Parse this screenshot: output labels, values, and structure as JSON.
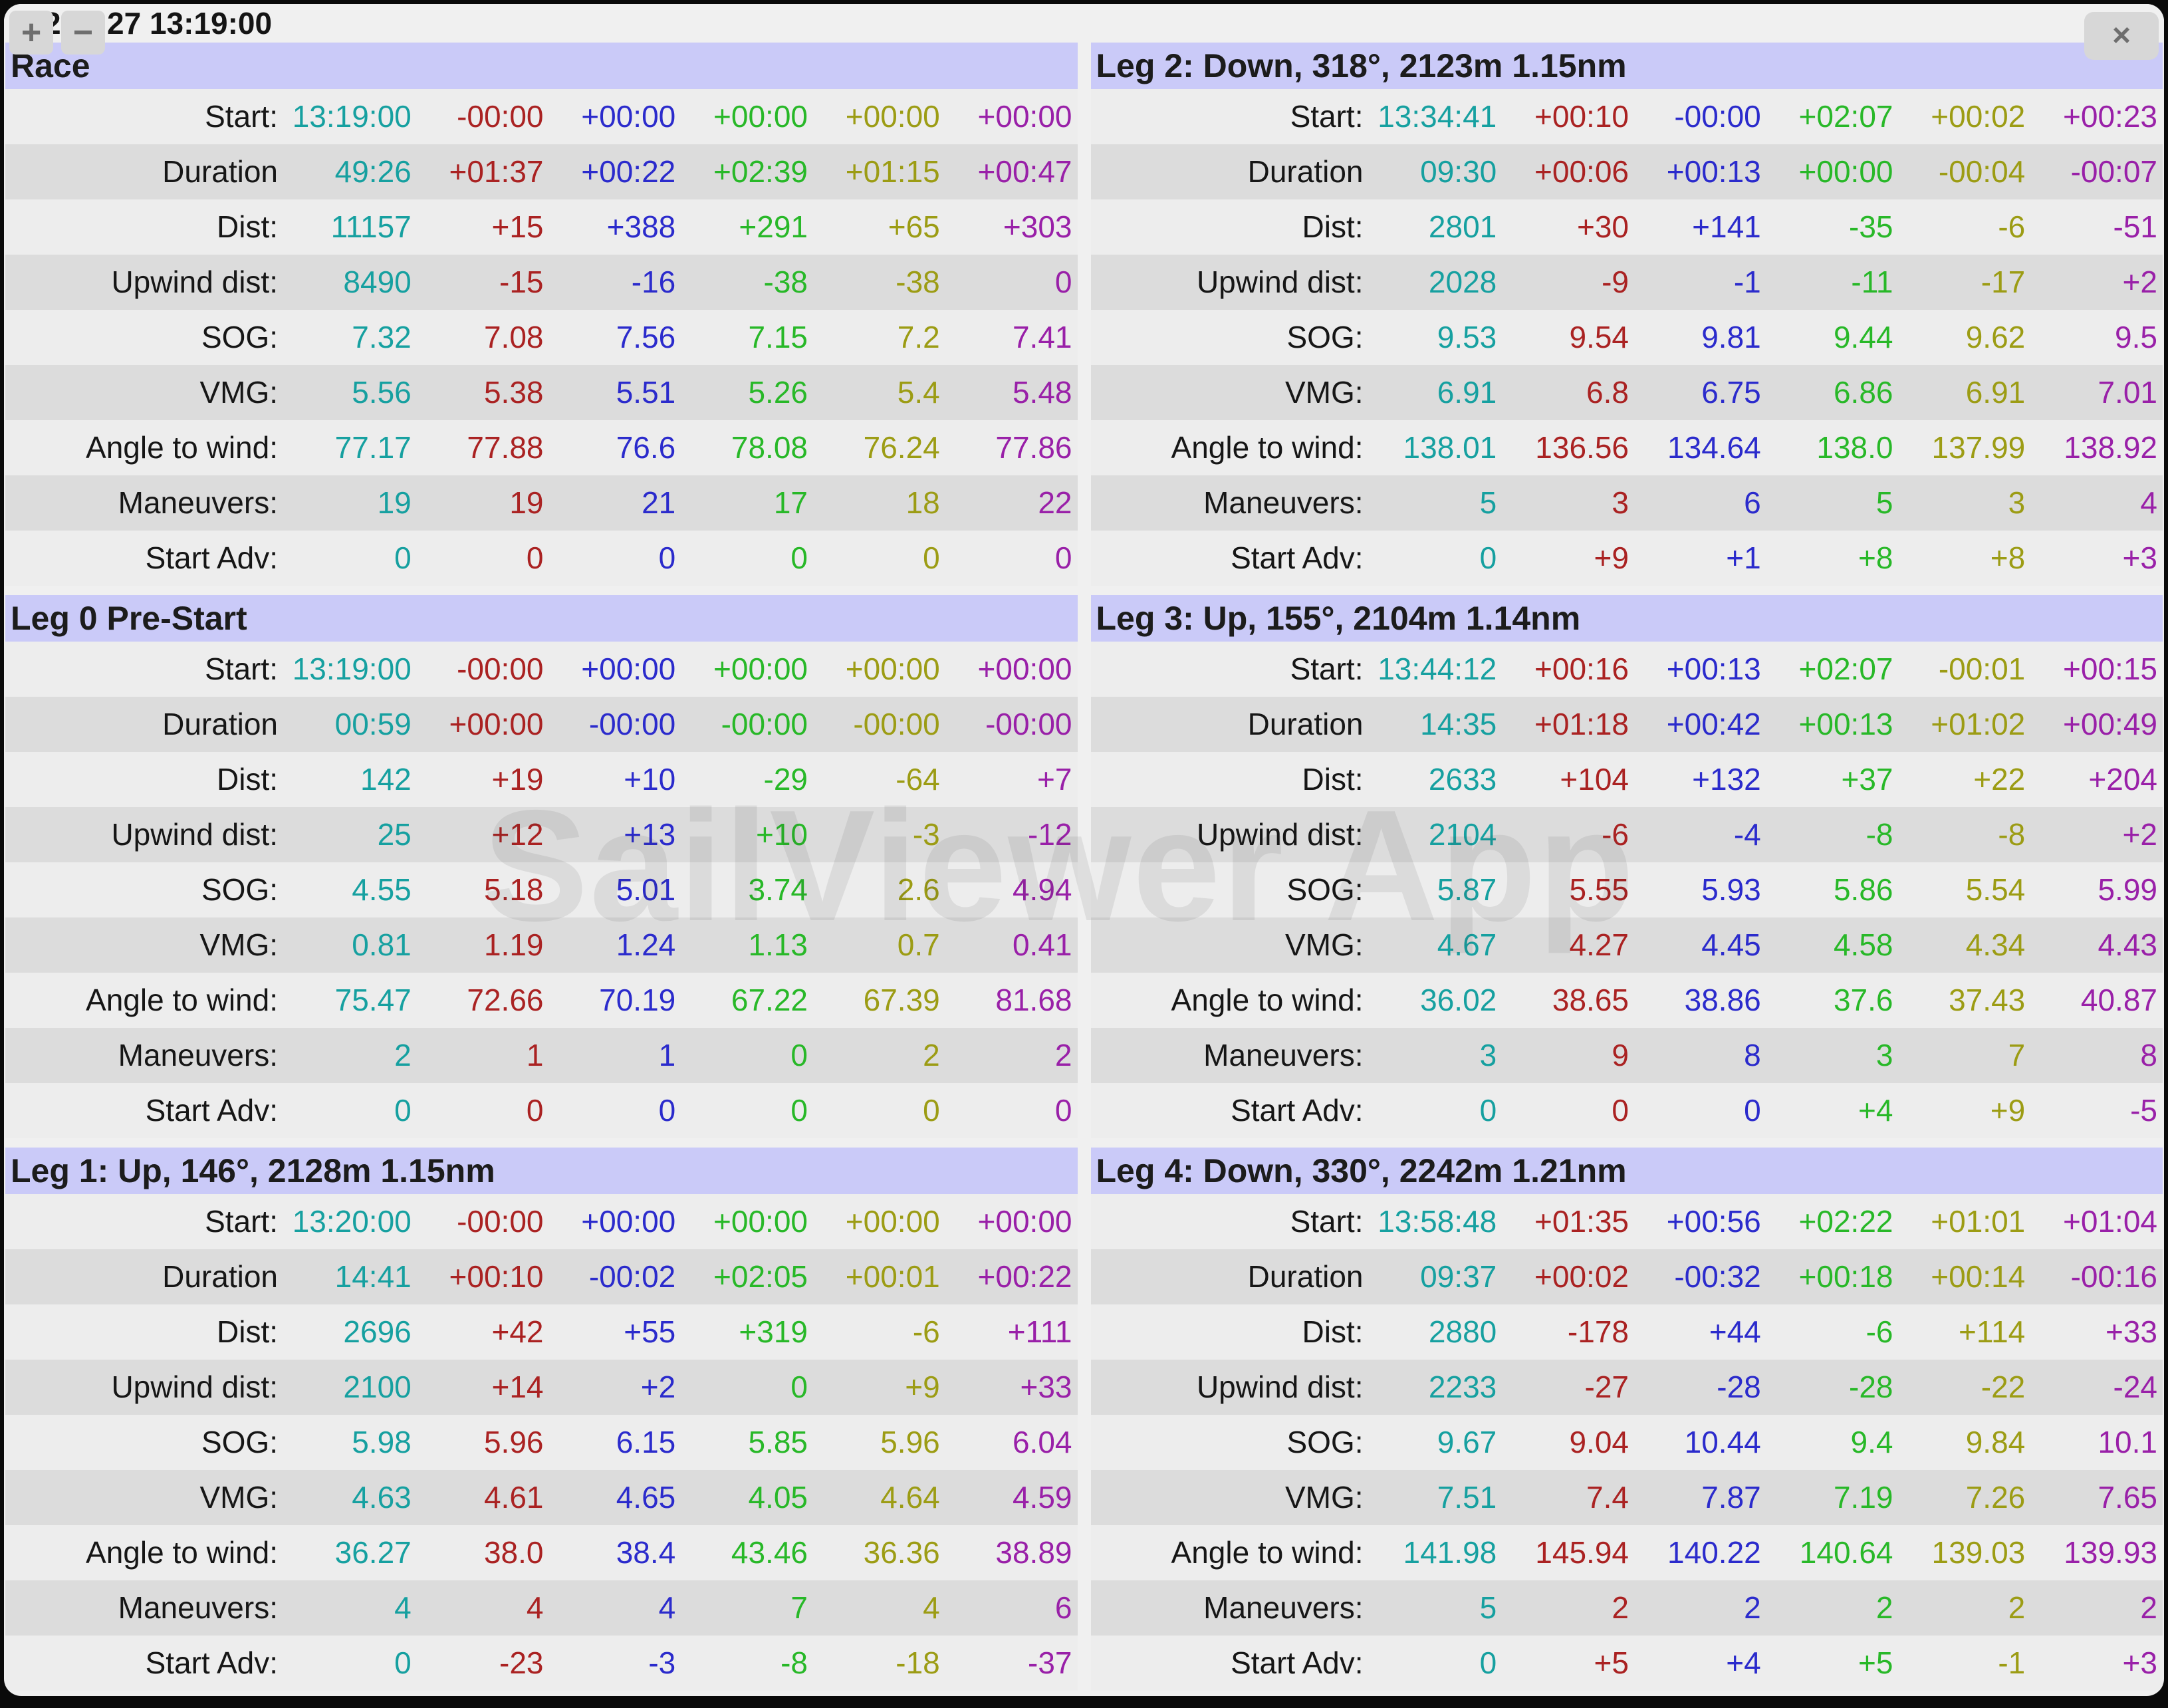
{
  "titlebar": {
    "date_fragment": "23",
    "datetime": "27 13:19:00",
    "plus_label": "+",
    "minus_label": "−",
    "close_label": "×"
  },
  "watermark": "SailViewer App",
  "colors": {
    "columns": [
      "#16a0a0",
      "#aa2222",
      "#2b2bcc",
      "#28b828",
      "#9c9c14",
      "#9920a8"
    ],
    "header_band": "#cacaf8",
    "row_light": "#ededed",
    "row_dark": "#dcdcdc"
  },
  "row_labels": [
    "Start:",
    "Duration",
    "Dist:",
    "Upwind dist:",
    "SOG:",
    "VMG:",
    "Angle to wind:",
    "Maneuvers:",
    "Start Adv:"
  ],
  "panels": [
    {
      "title": "Race",
      "rows": [
        [
          "13:19:00",
          "-00:00",
          "+00:00",
          "+00:00",
          "+00:00",
          "+00:00"
        ],
        [
          "49:26",
          "+01:37",
          "+00:22",
          "+02:39",
          "+01:15",
          "+00:47"
        ],
        [
          "11157",
          "+15",
          "+388",
          "+291",
          "+65",
          "+303"
        ],
        [
          "8490",
          "-15",
          "-16",
          "-38",
          "-38",
          "0"
        ],
        [
          "7.32",
          "7.08",
          "7.56",
          "7.15",
          "7.2",
          "7.41"
        ],
        [
          "5.56",
          "5.38",
          "5.51",
          "5.26",
          "5.4",
          "5.48"
        ],
        [
          "77.17",
          "77.88",
          "76.6",
          "78.08",
          "76.24",
          "77.86"
        ],
        [
          "19",
          "19",
          "21",
          "17",
          "18",
          "22"
        ],
        [
          "0",
          "0",
          "0",
          "0",
          "0",
          "0"
        ]
      ]
    },
    {
      "title": "Leg 2: Down, 318°, 2123m 1.15nm",
      "rows": [
        [
          "13:34:41",
          "+00:10",
          "-00:00",
          "+02:07",
          "+00:02",
          "+00:23"
        ],
        [
          "09:30",
          "+00:06",
          "+00:13",
          "+00:00",
          "-00:04",
          "-00:07"
        ],
        [
          "2801",
          "+30",
          "+141",
          "-35",
          "-6",
          "-51"
        ],
        [
          "2028",
          "-9",
          "-1",
          "-11",
          "-17",
          "+2"
        ],
        [
          "9.53",
          "9.54",
          "9.81",
          "9.44",
          "9.62",
          "9.5"
        ],
        [
          "6.91",
          "6.8",
          "6.75",
          "6.86",
          "6.91",
          "7.01"
        ],
        [
          "138.01",
          "136.56",
          "134.64",
          "138.0",
          "137.99",
          "138.92"
        ],
        [
          "5",
          "3",
          "6",
          "5",
          "3",
          "4"
        ],
        [
          "0",
          "+9",
          "+1",
          "+8",
          "+8",
          "+3"
        ]
      ]
    },
    {
      "title": "Leg 0 Pre-Start",
      "rows": [
        [
          "13:19:00",
          "-00:00",
          "+00:00",
          "+00:00",
          "+00:00",
          "+00:00"
        ],
        [
          "00:59",
          "+00:00",
          "-00:00",
          "-00:00",
          "-00:00",
          "-00:00"
        ],
        [
          "142",
          "+19",
          "+10",
          "-29",
          "-64",
          "+7"
        ],
        [
          "25",
          "+12",
          "+13",
          "+10",
          "-3",
          "-12"
        ],
        [
          "4.55",
          "5.18",
          "5.01",
          "3.74",
          "2.6",
          "4.94"
        ],
        [
          "0.81",
          "1.19",
          "1.24",
          "1.13",
          "0.7",
          "0.41"
        ],
        [
          "75.47",
          "72.66",
          "70.19",
          "67.22",
          "67.39",
          "81.68"
        ],
        [
          "2",
          "1",
          "1",
          "0",
          "2",
          "2"
        ],
        [
          "0",
          "0",
          "0",
          "0",
          "0",
          "0"
        ]
      ]
    },
    {
      "title": "Leg 3: Up, 155°, 2104m 1.14nm",
      "rows": [
        [
          "13:44:12",
          "+00:16",
          "+00:13",
          "+02:07",
          "-00:01",
          "+00:15"
        ],
        [
          "14:35",
          "+01:18",
          "+00:42",
          "+00:13",
          "+01:02",
          "+00:49"
        ],
        [
          "2633",
          "+104",
          "+132",
          "+37",
          "+22",
          "+204"
        ],
        [
          "2104",
          "-6",
          "-4",
          "-8",
          "-8",
          "+2"
        ],
        [
          "5.87",
          "5.55",
          "5.93",
          "5.86",
          "5.54",
          "5.99"
        ],
        [
          "4.67",
          "4.27",
          "4.45",
          "4.58",
          "4.34",
          "4.43"
        ],
        [
          "36.02",
          "38.65",
          "38.86",
          "37.6",
          "37.43",
          "40.87"
        ],
        [
          "3",
          "9",
          "8",
          "3",
          "7",
          "8"
        ],
        [
          "0",
          "0",
          "0",
          "+4",
          "+9",
          "-5"
        ]
      ]
    },
    {
      "title": "Leg 1: Up, 146°, 2128m 1.15nm",
      "rows": [
        [
          "13:20:00",
          "-00:00",
          "+00:00",
          "+00:00",
          "+00:00",
          "+00:00"
        ],
        [
          "14:41",
          "+00:10",
          "-00:02",
          "+02:05",
          "+00:01",
          "+00:22"
        ],
        [
          "2696",
          "+42",
          "+55",
          "+319",
          "-6",
          "+111"
        ],
        [
          "2100",
          "+14",
          "+2",
          "0",
          "+9",
          "+33"
        ],
        [
          "5.98",
          "5.96",
          "6.15",
          "5.85",
          "5.96",
          "6.04"
        ],
        [
          "4.63",
          "4.61",
          "4.65",
          "4.05",
          "4.64",
          "4.59"
        ],
        [
          "36.27",
          "38.0",
          "38.4",
          "43.46",
          "36.36",
          "38.89"
        ],
        [
          "4",
          "4",
          "4",
          "7",
          "4",
          "6"
        ],
        [
          "0",
          "-23",
          "-3",
          "-8",
          "-18",
          "-37"
        ]
      ]
    },
    {
      "title": "Leg 4: Down, 330°, 2242m 1.21nm",
      "rows": [
        [
          "13:58:48",
          "+01:35",
          "+00:56",
          "+02:22",
          "+01:01",
          "+01:04"
        ],
        [
          "09:37",
          "+00:02",
          "-00:32",
          "+00:18",
          "+00:14",
          "-00:16"
        ],
        [
          "2880",
          "-178",
          "+44",
          "-6",
          "+114",
          "+33"
        ],
        [
          "2233",
          "-27",
          "-28",
          "-28",
          "-22",
          "-24"
        ],
        [
          "9.67",
          "9.04",
          "10.44",
          "9.4",
          "9.84",
          "10.1"
        ],
        [
          "7.51",
          "7.4",
          "7.87",
          "7.19",
          "7.26",
          "7.65"
        ],
        [
          "141.98",
          "145.94",
          "140.22",
          "140.64",
          "139.03",
          "139.93"
        ],
        [
          "5",
          "2",
          "2",
          "2",
          "2",
          "2"
        ],
        [
          "0",
          "+5",
          "+4",
          "+5",
          "-1",
          "+3"
        ]
      ]
    }
  ]
}
